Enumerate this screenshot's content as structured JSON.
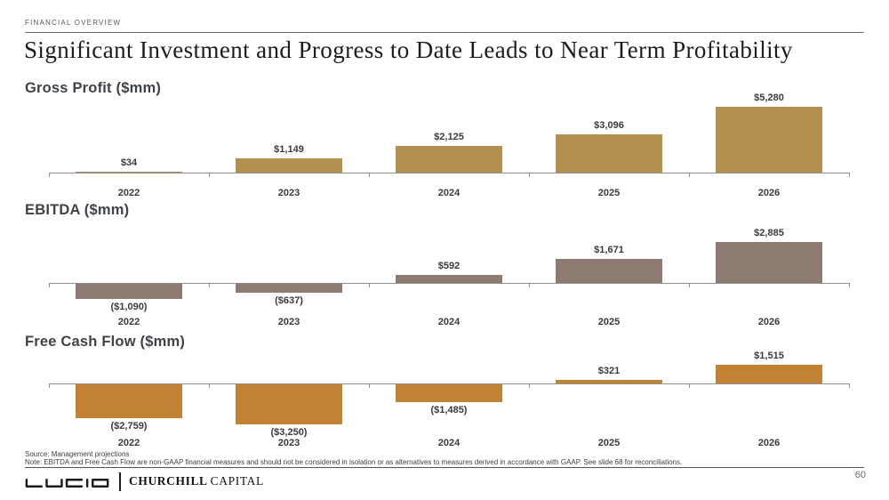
{
  "header": {
    "eyebrow": "FINANCIAL OVERVIEW",
    "title": "Significant Investment and Progress to Date Leads to Near Term Profitability"
  },
  "chart_data": [
    {
      "type": "bar",
      "title": "Gross Profit ($mm)",
      "categories": [
        "2022",
        "2023",
        "2024",
        "2025",
        "2026"
      ],
      "values": [
        34,
        1149,
        2125,
        3096,
        5280
      ],
      "value_labels": [
        "$34",
        "$1,149",
        "$2,125",
        "$3,096",
        "$5,280"
      ],
      "bar_color": "#B29150",
      "axis_color": "#8F8F8F",
      "grid": false,
      "legend": false
    },
    {
      "type": "bar",
      "title": "EBITDA ($mm)",
      "categories": [
        "2022",
        "2023",
        "2024",
        "2025",
        "2026"
      ],
      "values": [
        -1090,
        -637,
        592,
        1671,
        2885
      ],
      "value_labels": [
        "($1,090)",
        "($637)",
        "$592",
        "$1,671",
        "$2,885"
      ],
      "bar_color": "#8D7B72",
      "axis_color": "#8F8F8F",
      "grid": false,
      "legend": false
    },
    {
      "type": "bar",
      "title": "Free Cash Flow ($mm)",
      "categories": [
        "2022",
        "2023",
        "2024",
        "2025",
        "2026"
      ],
      "values": [
        -2759,
        -3250,
        -1485,
        321,
        1515
      ],
      "value_labels": [
        "($2,759)",
        "($3,250)",
        "($1,485)",
        "$321",
        "$1,515"
      ],
      "bar_color": "#C28233",
      "axis_color": "#8F8F8F",
      "grid": false,
      "legend": false
    }
  ],
  "footer": {
    "source": "Source: Management projections",
    "note": "Note: EBITDA and Free Cash Flow are non-GAAP financial measures and should not be considered in isolation or as alternatives to measures derived in accordance with GAAP. See slide 68 for reconciliations.",
    "page_number": "60",
    "logo_left": "LUCID",
    "logo_right_bold": "CHURCHILL",
    "logo_right_light": "CAPITAL"
  }
}
